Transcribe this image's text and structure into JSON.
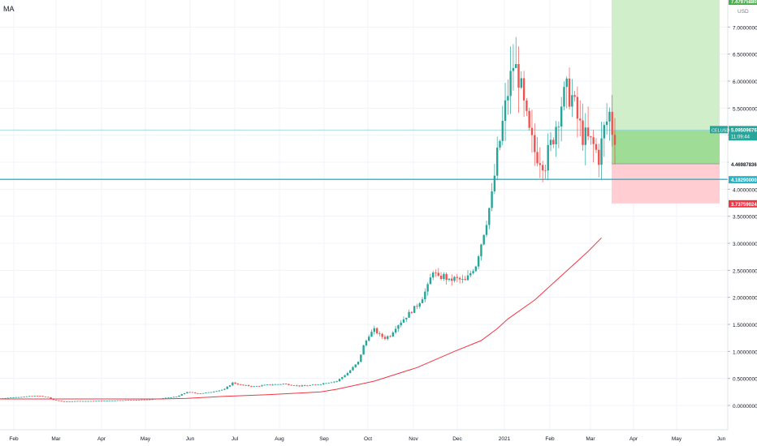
{
  "header": {
    "indicator_label": "MA"
  },
  "price_scale": {
    "currency": "USD",
    "top_badge": "7.47975880"
  },
  "chart_data": {
    "type": "candlestick",
    "symbol": "CELUSD",
    "currency": "USD",
    "indicator": "MA",
    "x_ticks": [
      "Feb",
      "Mar",
      "Apr",
      "May",
      "Jun",
      "Jul",
      "Aug",
      "Sep",
      "Oct",
      "Nov",
      "Dec",
      "2021",
      "Feb",
      "Mar",
      "Apr",
      "May",
      "Jun"
    ],
    "y_ticks": [
      "7.00000000",
      "6.50000000",
      "6.00000000",
      "5.50000000",
      "5.00000000",
      "4.50000000",
      "4.00000000",
      "3.50000000",
      "3.00000000",
      "2.50000000",
      "2.00000000",
      "1.50000000",
      "1.00000000",
      "0.50000000",
      "0.00000000"
    ],
    "ylim": [
      -0.45,
      7.5
    ],
    "last_price": {
      "label": "CELUSD",
      "value": "5.09509676",
      "countdown": "11:09:44"
    },
    "horizontal_line": {
      "value": 4.1829,
      "label": "4.18290000"
    },
    "position": {
      "type": "long",
      "entry": {
        "value": 4.46987836,
        "label": "4.46987836"
      },
      "target": {
        "value": 7.4797588,
        "label": "7.47975880"
      },
      "stop": {
        "value": 3.73759024,
        "label": "3.73759024"
      }
    },
    "price_path": [
      [
        0,
        0.13
      ],
      [
        8,
        0.16
      ],
      [
        14,
        0.18
      ],
      [
        18,
        0.15
      ],
      [
        20,
        0.1
      ],
      [
        24,
        0.07
      ],
      [
        28,
        0.08
      ],
      [
        34,
        0.08
      ],
      [
        40,
        0.09
      ],
      [
        48,
        0.1
      ],
      [
        56,
        0.11
      ],
      [
        60,
        0.13
      ],
      [
        66,
        0.16
      ],
      [
        70,
        0.25
      ],
      [
        74,
        0.22
      ],
      [
        78,
        0.24
      ],
      [
        84,
        0.3
      ],
      [
        87,
        0.42
      ],
      [
        90,
        0.38
      ],
      [
        95,
        0.35
      ],
      [
        100,
        0.38
      ],
      [
        106,
        0.4
      ],
      [
        112,
        0.36
      ],
      [
        118,
        0.38
      ],
      [
        122,
        0.42
      ],
      [
        126,
        0.45
      ],
      [
        130,
        0.6
      ],
      [
        134,
        0.8
      ],
      [
        136,
        1.1
      ],
      [
        138,
        1.3
      ],
      [
        140,
        1.4
      ],
      [
        142,
        1.3
      ],
      [
        144,
        1.25
      ],
      [
        146,
        1.3
      ],
      [
        148,
        1.45
      ],
      [
        150,
        1.55
      ],
      [
        152,
        1.65
      ],
      [
        154,
        1.75
      ],
      [
        156,
        1.85
      ],
      [
        158,
        2.0
      ],
      [
        160,
        2.2
      ],
      [
        162,
        2.5
      ],
      [
        164,
        2.35
      ],
      [
        166,
        2.4
      ],
      [
        168,
        2.3
      ],
      [
        170,
        2.35
      ],
      [
        174,
        2.3
      ],
      [
        176,
        2.45
      ],
      [
        178,
        2.6
      ],
      [
        180,
        3.0
      ],
      [
        182,
        3.4
      ],
      [
        184,
        3.9
      ],
      [
        186,
        4.6
      ],
      [
        188,
        5.2
      ],
      [
        190,
        5.8
      ],
      [
        192,
        6.3
      ],
      [
        194,
        6.1
      ],
      [
        196,
        5.5
      ],
      [
        198,
        5.0
      ],
      [
        200,
        4.7
      ],
      [
        202,
        4.6
      ],
      [
        204,
        4.5
      ],
      [
        206,
        4.8
      ],
      [
        208,
        5.2
      ],
      [
        210,
        5.6
      ],
      [
        212,
        5.8
      ],
      [
        214,
        5.7
      ],
      [
        216,
        5.3
      ],
      [
        218,
        5.0
      ],
      [
        220,
        4.9
      ],
      [
        222,
        4.8
      ],
      [
        224,
        4.6
      ],
      [
        226,
        5.1
      ],
      [
        228,
        5.4
      ],
      [
        229,
        5.1
      ],
      [
        230,
        5.0
      ]
    ],
    "ma_path": [
      [
        0,
        0.12
      ],
      [
        60,
        0.12
      ],
      [
        70,
        0.13
      ],
      [
        84,
        0.17
      ],
      [
        100,
        0.2
      ],
      [
        120,
        0.25
      ],
      [
        126,
        0.3
      ],
      [
        140,
        0.45
      ],
      [
        156,
        0.7
      ],
      [
        170,
        1.0
      ],
      [
        180,
        1.2
      ],
      [
        186,
        1.42
      ],
      [
        190,
        1.6
      ],
      [
        200,
        1.95
      ],
      [
        210,
        2.4
      ],
      [
        220,
        2.85
      ],
      [
        225,
        3.1
      ]
    ]
  }
}
